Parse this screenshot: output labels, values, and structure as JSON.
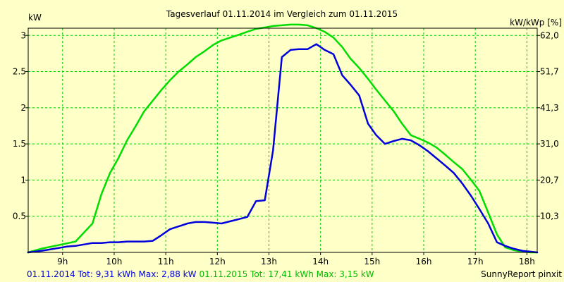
{
  "chart_data": {
    "type": "line",
    "title": "Tagesverlauf 01.11.2014 im Vergleich zum 01.11.2015",
    "ylabel_left": "kW",
    "ylabel_right": "kW/kWp [%]",
    "xlim": [
      8.3333,
      18.2
    ],
    "ylim": [
      0,
      3.1
    ],
    "x_ticks": [
      {
        "v": 9,
        "label": "9h"
      },
      {
        "v": 10,
        "label": "10h"
      },
      {
        "v": 11,
        "label": "11h"
      },
      {
        "v": 12,
        "label": "12h"
      },
      {
        "v": 13,
        "label": "13h"
      },
      {
        "v": 14,
        "label": "14h"
      },
      {
        "v": 15,
        "label": "15h"
      },
      {
        "v": 16,
        "label": "16h"
      },
      {
        "v": 17,
        "label": "17h"
      },
      {
        "v": 18,
        "label": "18h"
      }
    ],
    "y_ticks_left": [
      {
        "v": 0.5,
        "label": "0.5"
      },
      {
        "v": 1,
        "label": "1"
      },
      {
        "v": 1.5,
        "label": "1.5"
      },
      {
        "v": 2,
        "label": "2"
      },
      {
        "v": 2.5,
        "label": "2.5"
      },
      {
        "v": 3,
        "label": "3"
      }
    ],
    "y_ticks_right": [
      {
        "v": 0.5,
        "label": "10,3"
      },
      {
        "v": 1,
        "label": "20,7"
      },
      {
        "v": 1.5,
        "label": "31,0"
      },
      {
        "v": 2,
        "label": "41,3"
      },
      {
        "v": 2.5,
        "label": "51,7"
      },
      {
        "v": 3,
        "label": "62,0"
      }
    ],
    "grid": true,
    "series": [
      {
        "name": "01.11.2014",
        "color": "#0000dd",
        "x": [
          8.33,
          8.58,
          8.75,
          8.92,
          9.08,
          9.25,
          9.42,
          9.58,
          9.75,
          9.92,
          10.08,
          10.25,
          10.42,
          10.58,
          10.75,
          10.92,
          11.08,
          11.25,
          11.42,
          11.58,
          11.75,
          11.92,
          12.08,
          12.25,
          12.42,
          12.58,
          12.75,
          12.92,
          13.08,
          13.25,
          13.42,
          13.58,
          13.75,
          13.92,
          14.08,
          14.25,
          14.42,
          14.58,
          14.75,
          14.92,
          15.08,
          15.25,
          15.42,
          15.58,
          15.75,
          15.92,
          16.08,
          16.25,
          16.42,
          16.58,
          16.75,
          16.92,
          17.08,
          17.25,
          17.42,
          17.58,
          17.75,
          17.92,
          18.08,
          18.2
        ],
        "y": [
          0.0,
          0.02,
          0.04,
          0.06,
          0.08,
          0.09,
          0.11,
          0.13,
          0.13,
          0.14,
          0.14,
          0.15,
          0.15,
          0.15,
          0.16,
          0.24,
          0.32,
          0.36,
          0.4,
          0.42,
          0.42,
          0.41,
          0.4,
          0.43,
          0.46,
          0.49,
          0.71,
          0.72,
          1.41,
          2.7,
          2.8,
          2.81,
          2.81,
          2.88,
          2.8,
          2.74,
          2.45,
          2.32,
          2.17,
          1.78,
          1.62,
          1.5,
          1.54,
          1.57,
          1.55,
          1.48,
          1.4,
          1.3,
          1.2,
          1.1,
          0.95,
          0.78,
          0.6,
          0.4,
          0.14,
          0.09,
          0.05,
          0.02,
          0.01,
          0.0
        ]
      },
      {
        "name": "01.11.2015",
        "color": "#00dd00",
        "x": [
          8.33,
          8.58,
          8.92,
          9.25,
          9.58,
          9.75,
          9.92,
          10.08,
          10.25,
          10.42,
          10.58,
          10.75,
          10.92,
          11.08,
          11.25,
          11.42,
          11.58,
          11.75,
          11.92,
          12.08,
          12.25,
          12.42,
          12.58,
          12.75,
          12.92,
          13.08,
          13.25,
          13.42,
          13.58,
          13.75,
          13.92,
          14.08,
          14.25,
          14.42,
          14.58,
          14.75,
          14.92,
          15.08,
          15.25,
          15.42,
          15.58,
          15.75,
          15.92,
          16.08,
          16.25,
          16.42,
          16.58,
          16.75,
          16.92,
          17.08,
          17.25,
          17.42,
          17.58,
          17.75,
          17.92,
          18.08,
          18.2
        ],
        "y": [
          0.0,
          0.05,
          0.1,
          0.15,
          0.4,
          0.8,
          1.1,
          1.3,
          1.55,
          1.75,
          1.95,
          2.1,
          2.25,
          2.38,
          2.5,
          2.6,
          2.7,
          2.78,
          2.87,
          2.93,
          2.97,
          3.01,
          3.05,
          3.09,
          3.11,
          3.13,
          3.14,
          3.15,
          3.15,
          3.14,
          3.1,
          3.05,
          2.97,
          2.84,
          2.68,
          2.55,
          2.4,
          2.25,
          2.1,
          1.95,
          1.78,
          1.62,
          1.57,
          1.52,
          1.45,
          1.35,
          1.25,
          1.15,
          1.0,
          0.85,
          0.55,
          0.25,
          0.07,
          0.03,
          0.01,
          0.0,
          0.0
        ]
      }
    ],
    "footer": {
      "left_blue": "01.11.2014 Tot: 9,31 kWh Max: 2,88 kW",
      "left_green": "01.11.2015 Tot: 17,41 kWh Max: 3,15 kW",
      "right": "SunnyReport pinxit"
    }
  }
}
